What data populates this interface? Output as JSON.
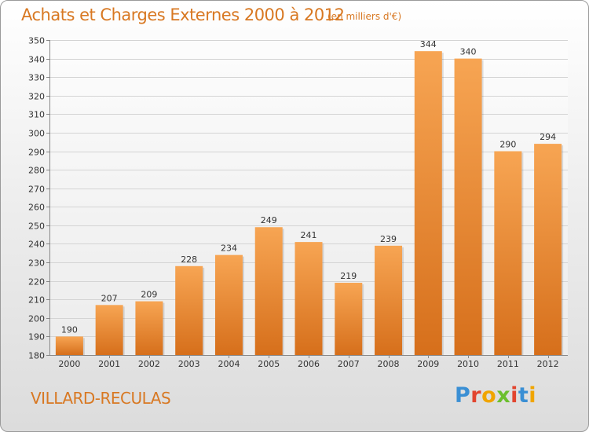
{
  "header": {
    "title": "Achats et Charges Externes 2000 à 2012",
    "unit": "(en milliers d'€)"
  },
  "footer": {
    "location": "VILLARD-RECULAS",
    "brand": [
      "P",
      "r",
      "o",
      "x",
      "i",
      "t",
      "i"
    ],
    "brand_colors": [
      "#3a8fd4",
      "#e2452f",
      "#f0a500",
      "#6cbf2e",
      "#e2452f",
      "#3a8fd4",
      "#f0a500"
    ]
  },
  "colors": {
    "accent": "#d87822",
    "bar_light": "#f7a553",
    "bar_dark": "#d66f1b"
  },
  "chart_data": {
    "type": "bar",
    "categories": [
      "2000",
      "2001",
      "2002",
      "2003",
      "2004",
      "2005",
      "2006",
      "2007",
      "2008",
      "2009",
      "2010",
      "2011",
      "2012"
    ],
    "values": [
      190,
      207,
      209,
      228,
      234,
      249,
      241,
      219,
      239,
      344,
      340,
      290,
      294
    ],
    "ylim": [
      180,
      350
    ],
    "yticks": [
      180,
      190,
      200,
      210,
      220,
      230,
      240,
      250,
      260,
      270,
      280,
      290,
      300,
      310,
      320,
      330,
      340,
      350
    ],
    "grid": true
  }
}
